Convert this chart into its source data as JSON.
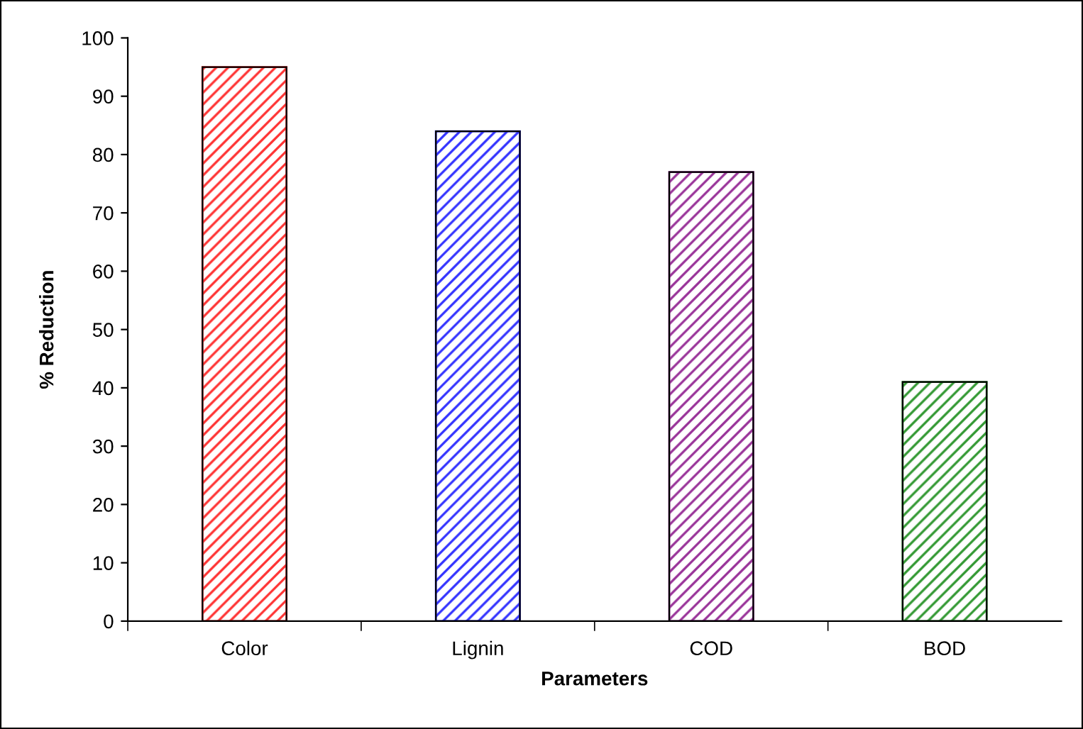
{
  "chart_data": {
    "type": "bar",
    "xlabel": "Parameters",
    "ylabel": "% Reduction",
    "categories": [
      "Color",
      "Lignin",
      "COD",
      "BOD"
    ],
    "values": [
      95,
      84,
      77,
      41
    ],
    "colors": [
      "#ff3333",
      "#3333ff",
      "#993399",
      "#339933"
    ],
    "ylim": [
      0,
      100
    ],
    "yticks": [
      0,
      10,
      20,
      30,
      40,
      50,
      60,
      70,
      80,
      90,
      100
    ],
    "grid": false
  }
}
